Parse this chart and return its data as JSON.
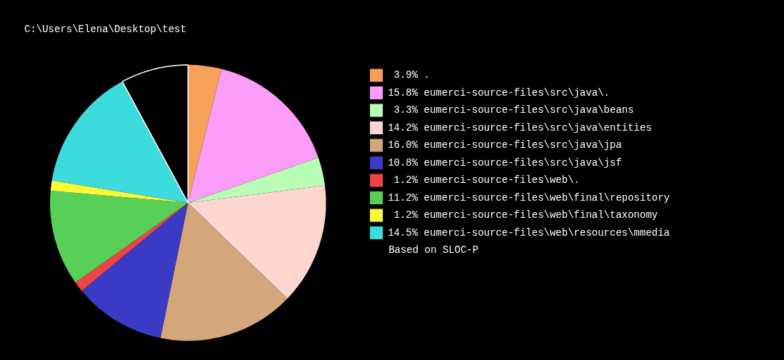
{
  "chart_data": {
    "type": "pie",
    "title": "C:\\Users\\Elena\\Desktop\\test",
    "categories": [
      ".",
      "eumerci-source-files\\src\\java\\.",
      "eumerci-source-files\\src\\java\\beans",
      "eumerci-source-files\\src\\java\\entities",
      "eumerci-source-files\\src\\java\\jpa",
      "eumerci-source-files\\src\\java\\jsf",
      "eumerci-source-files\\web\\.",
      "eumerci-source-files\\web\\final\\repository",
      "eumerci-source-files\\web\\final\\taxonomy",
      "eumerci-source-files\\web\\resources\\mmedia",
      null
    ],
    "values": [
      3.9,
      15.8,
      3.3,
      14.2,
      16.0,
      10.8,
      1.2,
      11.2,
      1.2,
      14.5,
      7.9
    ],
    "value_labels": [
      "3.9%",
      "15.8%",
      "3.3%",
      "14.2%",
      "16.0%",
      "10.8%",
      "1.2%",
      "11.2%",
      "1.2%",
      "14.5%",
      null
    ],
    "colors": [
      "#f7a05a",
      "#fa9cf8",
      "#b8fcb6",
      "#fdd6d2",
      "#d3a67c",
      "#3a3ac4",
      "#ee4444",
      "#58d058",
      "#fafa3a",
      "#3cdcdc",
      "#000000"
    ],
    "legend": "right",
    "annotations": [
      "Based on SLOC-P"
    ]
  }
}
